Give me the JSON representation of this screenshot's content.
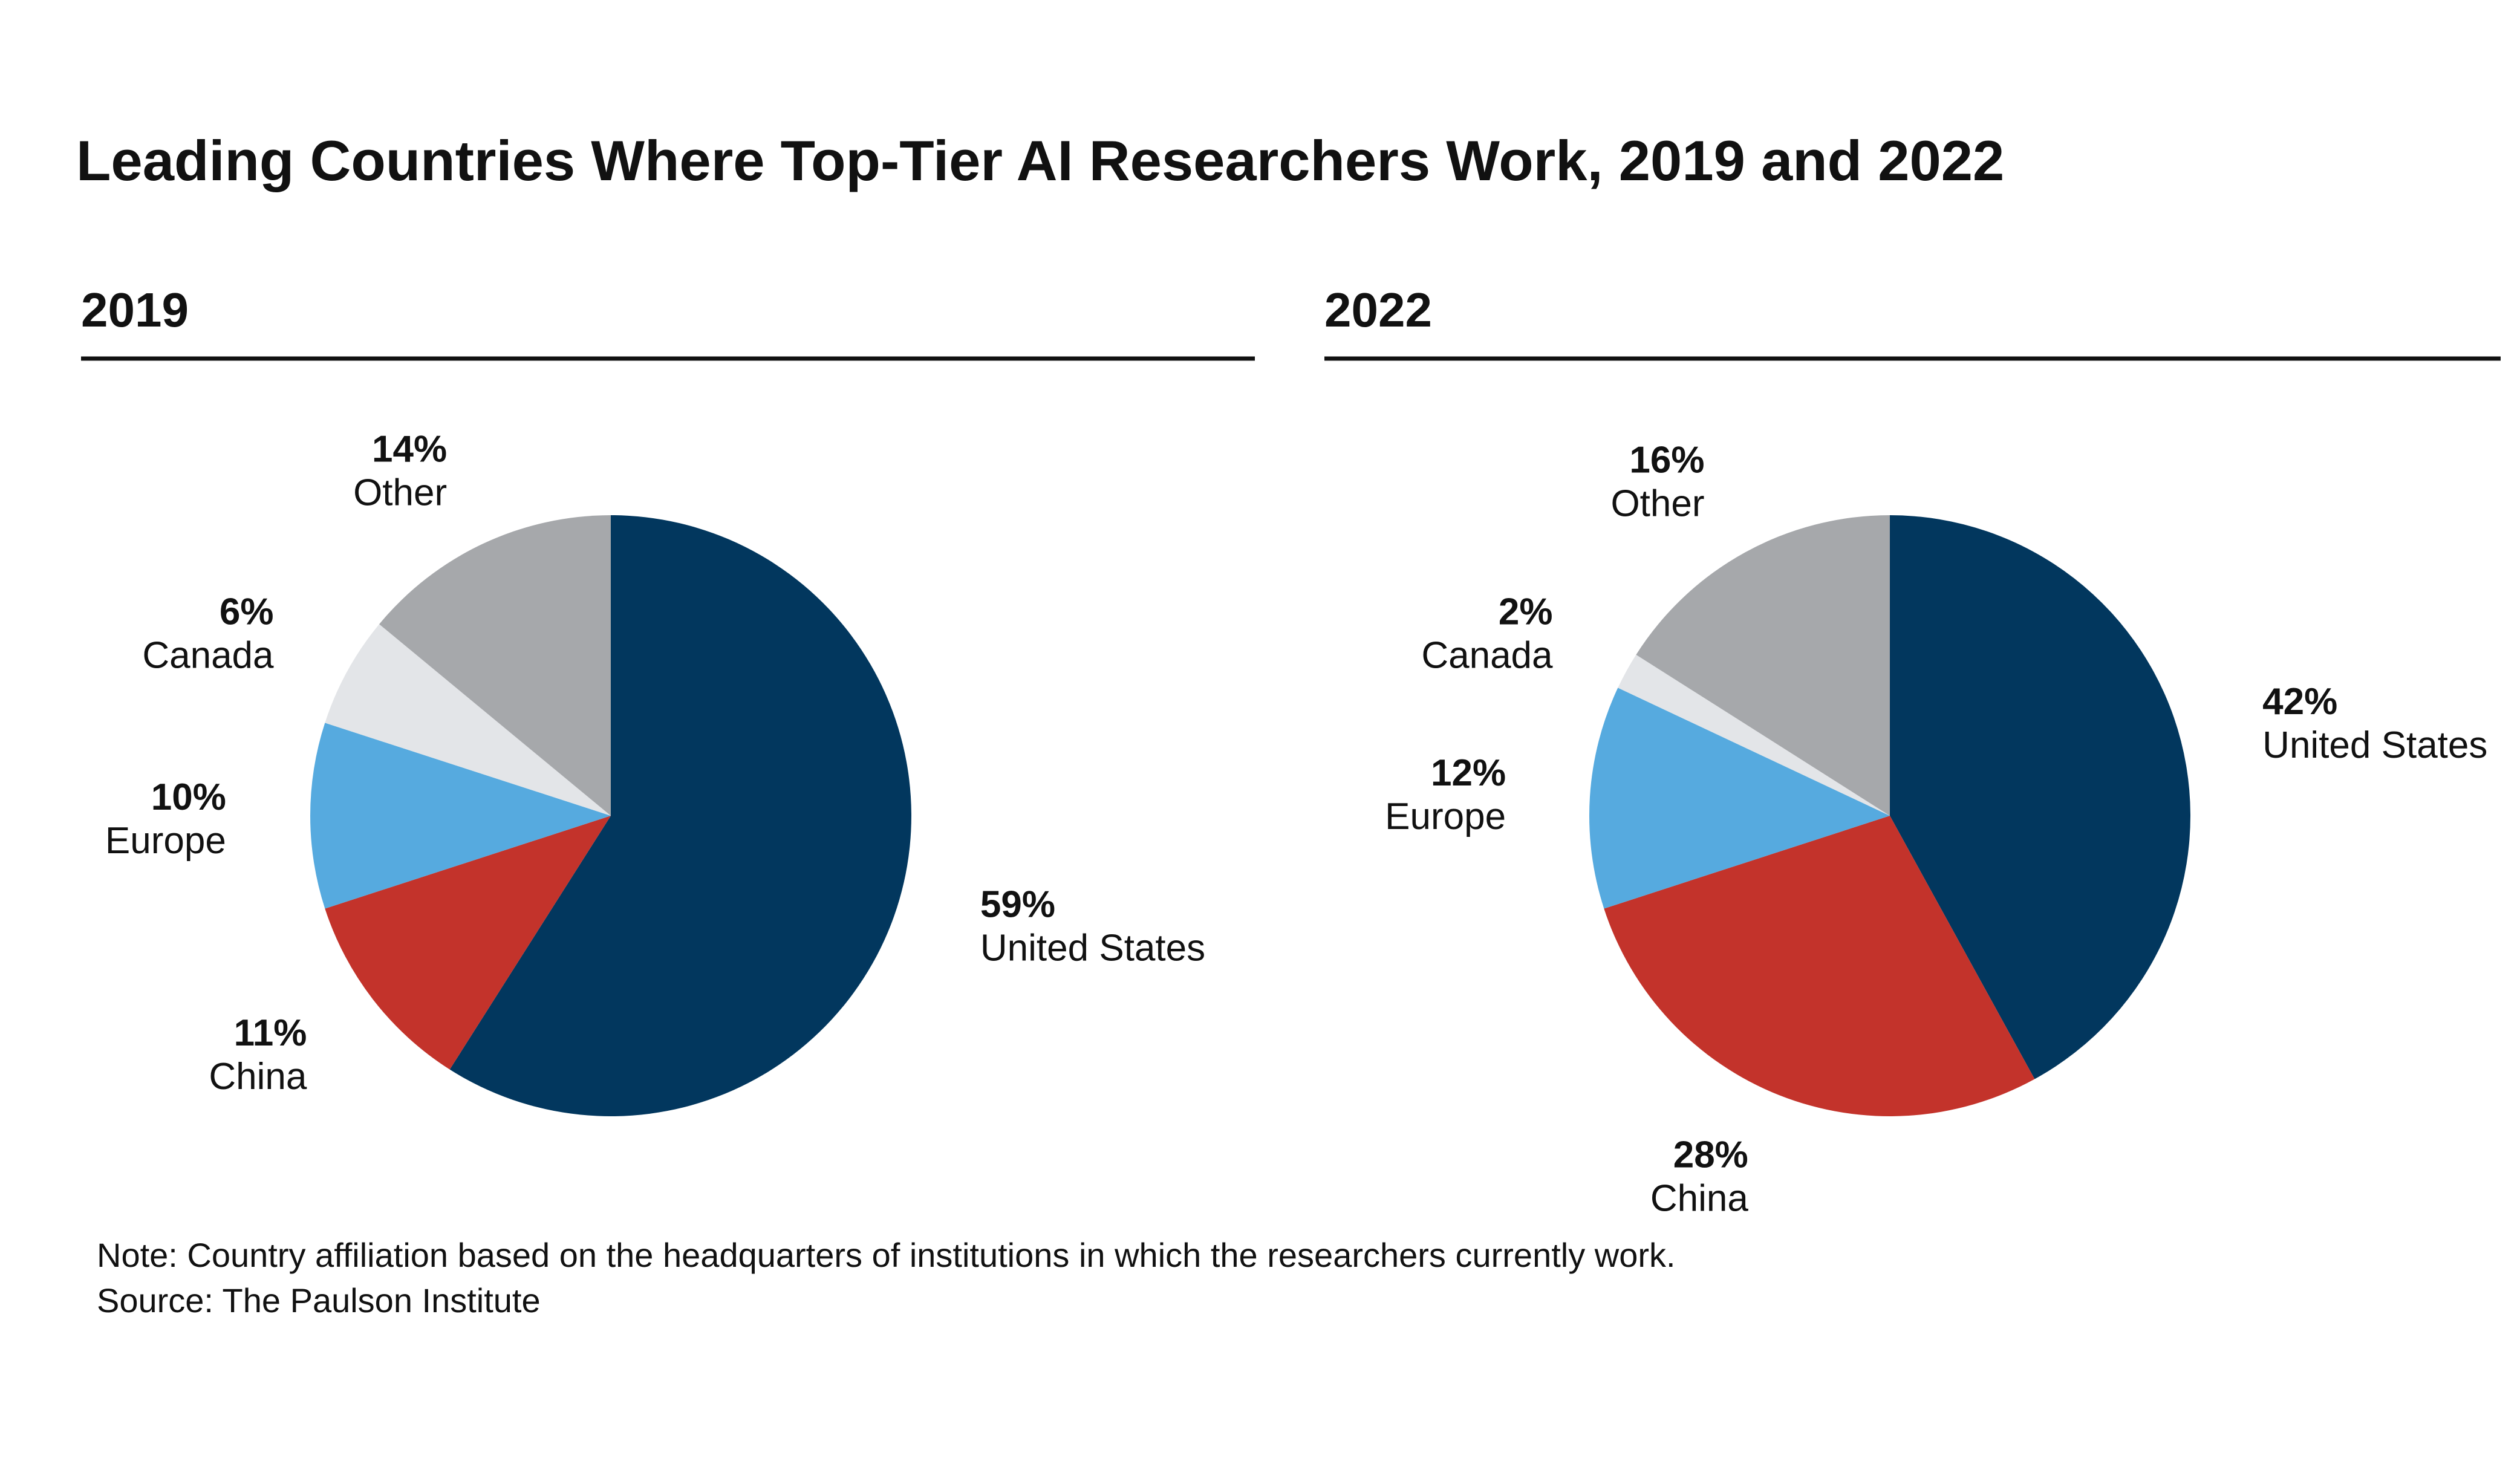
{
  "title": "Leading Countries Where Top-Tier AI Researchers Work, 2019 and 2022",
  "chart_data": [
    {
      "type": "pie",
      "title": "2019",
      "categories": [
        "United States",
        "China",
        "Europe",
        "Canada",
        "Other"
      ],
      "values": [
        59,
        11,
        10,
        6,
        14
      ],
      "value_labels": [
        "59%",
        "11%",
        "10%",
        "6%",
        "14%"
      ],
      "colors": [
        "#02375e",
        "#c3332b",
        "#56aadf",
        "#e3e5e8",
        "#a6a8ab"
      ]
    },
    {
      "type": "pie",
      "title": "2022",
      "categories": [
        "United States",
        "China",
        "Europe",
        "Canada",
        "Other"
      ],
      "values": [
        42,
        28,
        12,
        2,
        16
      ],
      "value_labels": [
        "42%",
        "28%",
        "12%",
        "2%",
        "16%"
      ],
      "colors": [
        "#02375e",
        "#c3332b",
        "#56aadf",
        "#e3e5e8",
        "#a6a8ab"
      ]
    }
  ],
  "note": "Note: Country affiliation based on the headquarters of institutions in which the researchers currently work.",
  "source": "Source: The Paulson Institute"
}
